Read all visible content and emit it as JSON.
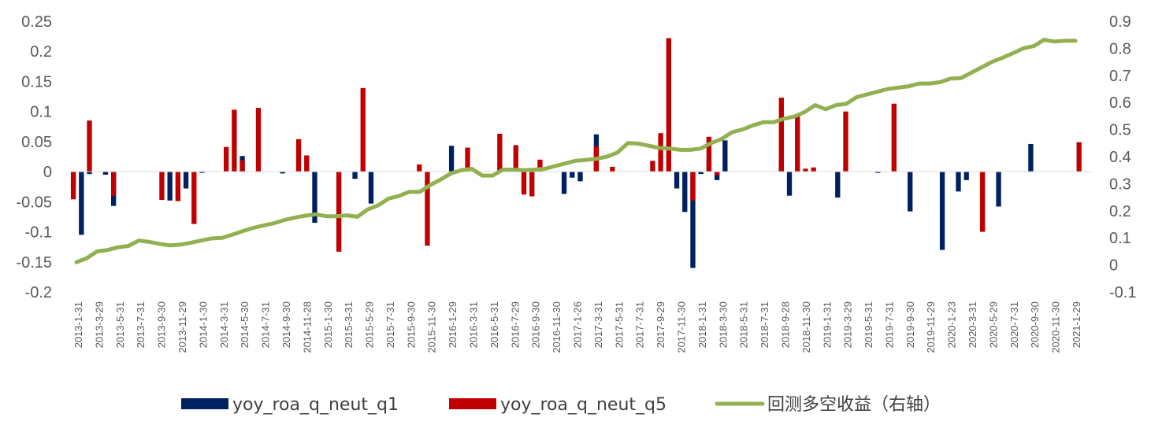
{
  "chart_data": {
    "type": "bar",
    "colors": {
      "q1": "#002060",
      "q5": "#C00000",
      "line": "#92B050"
    },
    "legend": {
      "placement": "bottom",
      "items": [
        "yoy_roa_q_neut_q1",
        "yoy_roa_q_neut_q5",
        "回测多空收益（右轴）"
      ]
    },
    "y_left": {
      "ylim": [
        -0.2,
        0.25
      ],
      "ticks": [
        "0.25",
        "0.2",
        "0.15",
        "0.1",
        "0.05",
        "0",
        "-0.05",
        "-0.1",
        "-0.15",
        "-0.2"
      ]
    },
    "y_right": {
      "ylim": [
        -0.1,
        0.9
      ],
      "ticks": [
        "0.9",
        "0.8",
        "0.7",
        "0.6",
        "0.5",
        "0.4",
        "0.3",
        "0.2",
        "0.1",
        "0",
        "-0.1"
      ]
    },
    "x_tick_labels": [
      "2013-1-31",
      "2013-3-29",
      "2013-5-31",
      "2013-7-31",
      "2013-9-30",
      "2013-11-29",
      "2014-1-30",
      "2014-3-31",
      "2014-5-30",
      "2014-7-31",
      "2014-9-30",
      "2014-11-28",
      "2015-1-30",
      "2015-3-31",
      "2015-5-29",
      "2015-7-31",
      "2015-9-30",
      "2015-11-30",
      "2016-1-29",
      "2016-3-31",
      "2016-5-31",
      "2016-7-29",
      "2016-9-30",
      "2016-11-30",
      "2017-1-26",
      "2017-3-31",
      "2017-5-31",
      "2017-7-31",
      "2017-9-29",
      "2017-11-30",
      "2018-1-31",
      "2018-3-30",
      "2018-5-31",
      "2018-7-31",
      "2018-9-28",
      "2018-11-30",
      "2019-1-31",
      "2019-3-29",
      "2019-5-31",
      "2019-7-31",
      "2019-9-30",
      "2019-11-29",
      "2020-1-23",
      "2020-3-31",
      "2020-5-29",
      "2020-7-31",
      "2020-9-30",
      "2020-11-30",
      "2021-1-29"
    ],
    "series": [
      {
        "name": "yoy_roa_q_neut_q1",
        "values": [
          -0.028,
          -0.105,
          -0.004,
          0,
          -0.005,
          -0.057,
          0,
          0,
          0,
          0,
          0,
          0,
          -0.048,
          0,
          -0.028,
          0,
          -0.002,
          0,
          0,
          0,
          0,
          0.026,
          0,
          0,
          0,
          0,
          -0.003,
          0,
          0,
          0,
          -0.085,
          0,
          0,
          0,
          0,
          -0.012,
          0,
          -0.053,
          0,
          0,
          0,
          0,
          0,
          0,
          0,
          0,
          0,
          0.043,
          0,
          0,
          0,
          0,
          0,
          0,
          0,
          0,
          0,
          0,
          0,
          0,
          0,
          -0.037,
          -0.01,
          -0.016,
          0,
          0.062,
          0,
          0,
          0,
          0,
          0,
          0,
          0,
          0,
          0,
          -0.028,
          -0.067,
          -0.16,
          -0.004,
          0.018,
          -0.014,
          0.052,
          0,
          0,
          0,
          0,
          0,
          0,
          0.019,
          -0.04,
          0,
          0,
          0,
          0,
          0,
          -0.043,
          0,
          0,
          0,
          0,
          -0.002,
          0,
          0,
          0,
          -0.066,
          0,
          0,
          0,
          -0.13,
          0,
          -0.033,
          -0.014,
          0,
          0,
          0,
          -0.058,
          0,
          0,
          0,
          0.046
        ]
      },
      {
        "name": "yoy_roa_q_neut_q5",
        "values": [
          -0.046,
          0,
          0.085,
          0,
          0,
          -0.04,
          0,
          0,
          0,
          0,
          0,
          -0.047,
          0,
          -0.049,
          0,
          -0.087,
          0,
          0,
          0,
          0.041,
          0.103,
          0.019,
          0,
          0.106,
          0,
          0,
          0,
          0,
          0.054,
          0.027,
          0,
          0,
          0,
          -0.133,
          0,
          0,
          0.139,
          0,
          0,
          0,
          0,
          0,
          0,
          0.012,
          -0.123,
          0,
          0,
          0,
          0,
          0.04,
          0,
          0,
          0,
          0.063,
          0,
          0.044,
          -0.038,
          -0.041,
          0.02,
          0,
          0,
          0,
          0,
          0,
          0,
          0.042,
          0,
          0.008,
          0,
          0,
          0,
          0,
          0.018,
          0.064,
          0.222,
          0,
          0,
          -0.048,
          0,
          0.058,
          -0.006,
          0,
          0,
          0,
          0,
          0,
          0,
          0,
          0.123,
          0,
          0.092,
          0.005,
          0.007,
          0,
          0,
          0,
          0.1,
          0,
          0,
          0,
          0,
          0,
          0.113,
          0,
          0,
          0,
          0,
          0,
          0,
          0,
          0,
          0,
          0,
          -0.1,
          0,
          0,
          0,
          0,
          0,
          0,
          0,
          0,
          0,
          0,
          0,
          0.049,
          0
        ]
      },
      {
        "name": "回测多空收益（右轴）",
        "values": [
          0.01,
          0.025,
          0.05,
          0.055,
          0.065,
          0.07,
          0.09,
          0.085,
          0.078,
          0.072,
          0.075,
          0.082,
          0.09,
          0.098,
          0.1,
          0.112,
          0.125,
          0.137,
          0.146,
          0.154,
          0.166,
          0.175,
          0.182,
          0.187,
          0.18,
          0.18,
          0.183,
          0.178,
          0.205,
          0.22,
          0.245,
          0.255,
          0.27,
          0.27,
          0.295,
          0.315,
          0.338,
          0.35,
          0.355,
          0.33,
          0.33,
          0.352,
          0.352,
          0.35,
          0.352,
          0.355,
          0.365,
          0.375,
          0.385,
          0.388,
          0.392,
          0.4,
          0.415,
          0.45,
          0.448,
          0.44,
          0.432,
          0.43,
          0.425,
          0.425,
          0.43,
          0.45,
          0.465,
          0.49,
          0.5,
          0.515,
          0.527,
          0.527,
          0.54,
          0.548,
          0.565,
          0.59,
          0.575,
          0.59,
          0.595,
          0.62,
          0.63,
          0.64,
          0.65,
          0.655,
          0.66,
          0.67,
          0.67,
          0.675,
          0.688,
          0.69,
          0.71,
          0.73,
          0.75,
          0.765,
          0.782,
          0.8,
          0.808,
          0.832,
          0.825,
          0.828,
          0.828
        ]
      }
    ]
  }
}
